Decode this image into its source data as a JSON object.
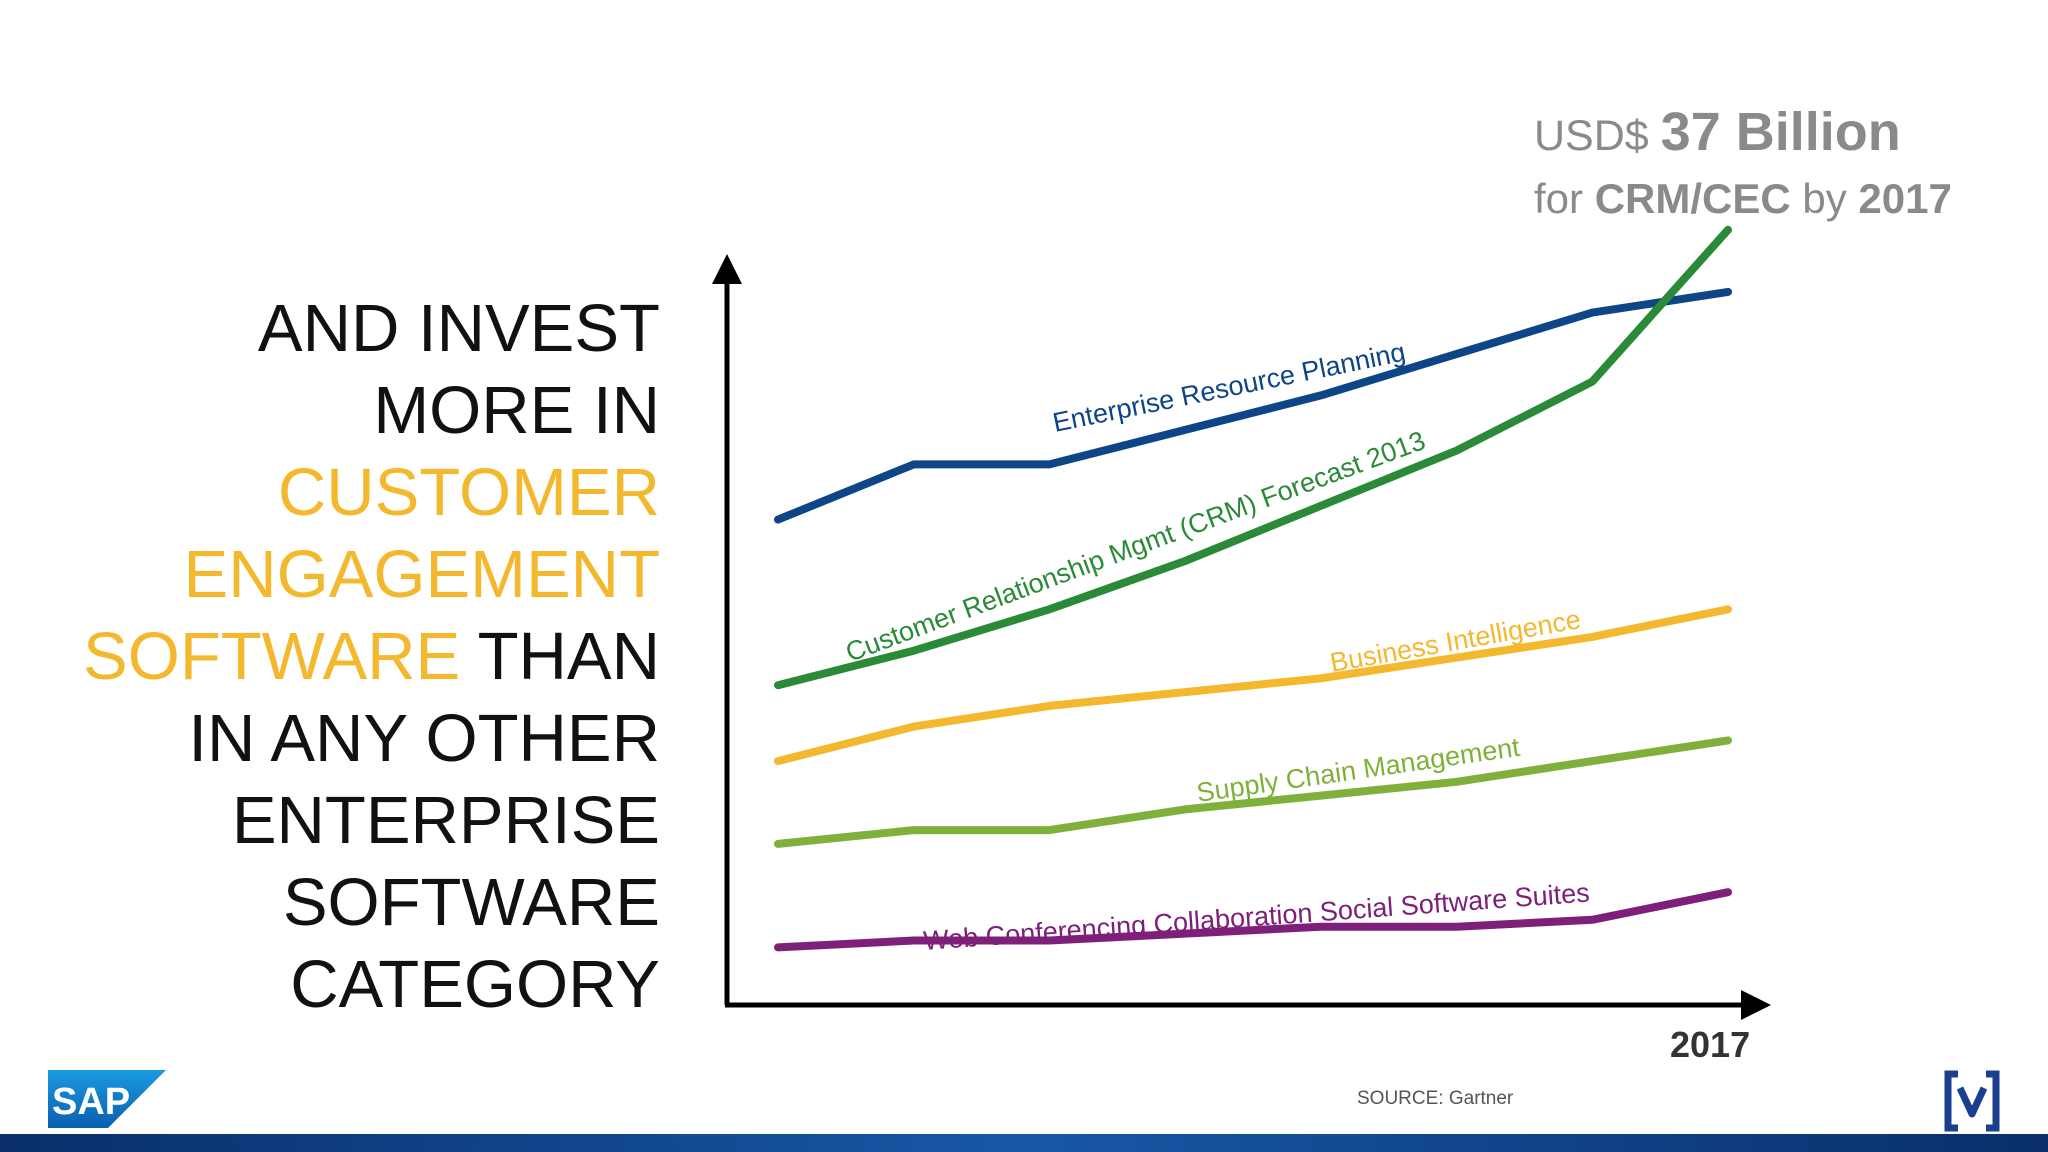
{
  "headline": {
    "line1": "AND INVEST",
    "line2": "MORE IN",
    "line3": "CUSTOMER",
    "line4": "ENGAGEMENT",
    "line5_accent": "SOFTWARE",
    "line5_rest": " THAN",
    "line6": "IN ANY OTHER",
    "line7": "ENTERPRISE",
    "line8": "SOFTWARE",
    "line9": "CATEGORY",
    "accent_color": "#f4b82e"
  },
  "callout": {
    "currency": "USD$ ",
    "amount": "37 Billion",
    "prefix": "for ",
    "category": "CRM/CEC",
    "by": " by ",
    "year": "2017"
  },
  "source": "SOURCE: Gartner",
  "logos": {
    "left": "SAP",
    "right_icon": "v-bracket-logo-icon"
  },
  "chart_data": {
    "type": "line",
    "x": [
      0,
      1,
      2,
      3,
      4,
      5,
      6,
      7
    ],
    "xlabel": "2017",
    "xlim": [
      0,
      7
    ],
    "ylim": [
      0,
      100
    ],
    "grid": false,
    "legend": "inline labels",
    "series": [
      {
        "name": "Enterprise Resource Planning",
        "color": "#0d4586",
        "values": [
          66,
          74,
          74,
          79,
          84,
          90,
          96,
          99
        ]
      },
      {
        "name": "Customer Relationship Mgmt (CRM) Forecast 2013",
        "color": "#2a8a37",
        "values": [
          42,
          47,
          53,
          60,
          68,
          76,
          86,
          108
        ]
      },
      {
        "name": "Business Intelligence",
        "color": "#f4b82e",
        "values": [
          31,
          36,
          39,
          41,
          43,
          46,
          49,
          53
        ]
      },
      {
        "name": "Supply Chain Management",
        "color": "#7fb13a",
        "values": [
          19,
          21,
          21,
          24,
          26,
          28,
          31,
          34
        ]
      },
      {
        "name": "Web Conferencing Collaboration Social Software Suites",
        "color": "#7e2079",
        "values": [
          4,
          5,
          5,
          6,
          7,
          7,
          8,
          12
        ]
      }
    ]
  }
}
